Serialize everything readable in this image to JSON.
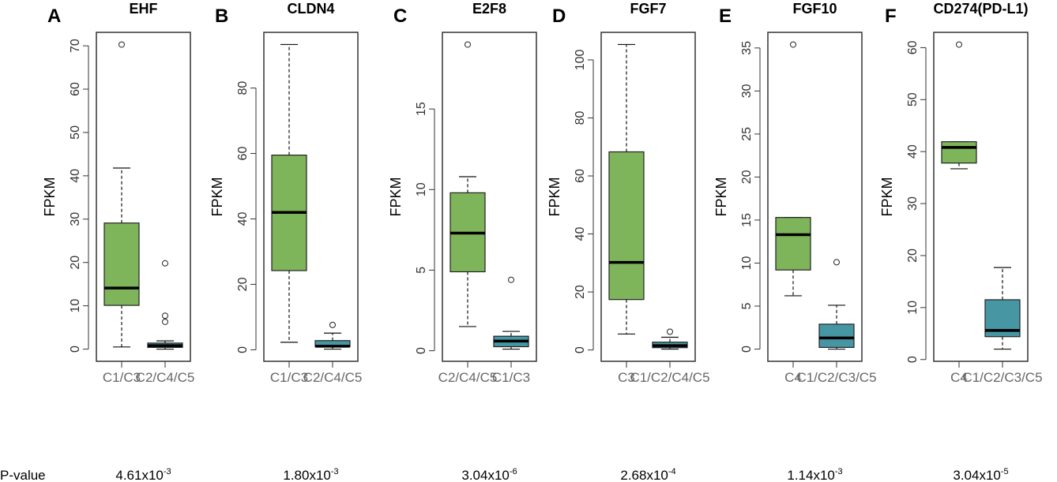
{
  "colors": {
    "green": "#7fb55a",
    "teal": "#4796a4",
    "outline": "#333333"
  },
  "row_label": "P-value",
  "chart_data": [
    {
      "type": "box",
      "letter": "A",
      "title": "EHF",
      "ylabel": "FPKM",
      "yticks": [
        0,
        10,
        20,
        30,
        40,
        50,
        60,
        70
      ],
      "p_value": {
        "base": "4.61x10",
        "exp": "-3"
      },
      "groups": [
        {
          "name": "C1/C3",
          "color": "green",
          "min": 0.5,
          "q1": 10.1,
          "median": 14.1,
          "q3": 29.1,
          "max": 41.8,
          "outliers": [
            70.3
          ]
        },
        {
          "name": "C2/C4/C5",
          "color": "teal",
          "min": 0,
          "q1": 0.4,
          "median": 0.8,
          "q3": 1.4,
          "max": 1.9,
          "outliers": [
            6.3,
            7.7,
            19.8
          ]
        }
      ]
    },
    {
      "type": "box",
      "letter": "B",
      "title": "CLDN4",
      "ylabel": "FPKM",
      "yticks": [
        0,
        20,
        40,
        60,
        80
      ],
      "p_value": {
        "base": "1.80x10",
        "exp": "-3"
      },
      "groups": [
        {
          "name": "C1/C3",
          "color": "green",
          "min": 2.3,
          "q1": 24.2,
          "median": 42,
          "q3": 59.5,
          "max": 93.3,
          "outliers": []
        },
        {
          "name": "C2/C4/C5",
          "color": "teal",
          "min": 0.2,
          "q1": 1.0,
          "median": 1.1,
          "q3": 2.8,
          "max": 5.1,
          "outliers": [
            7.6
          ]
        }
      ]
    },
    {
      "type": "box",
      "letter": "C",
      "title": "E2F8",
      "ylabel": "FPKM",
      "yticks": [
        0,
        5,
        10,
        15
      ],
      "p_value": {
        "base": "3.04x10",
        "exp": "-6"
      },
      "groups": [
        {
          "name": "C2/C4/C5",
          "color": "green",
          "min": 1.5,
          "q1": 4.9,
          "median": 7.3,
          "q3": 9.8,
          "max": 10.8,
          "outliers": [
            19.0
          ]
        },
        {
          "name": "C1/C3",
          "color": "teal",
          "min": 0.1,
          "q1": 0.25,
          "median": 0.6,
          "q3": 0.9,
          "max": 1.2,
          "outliers": [
            4.4
          ]
        }
      ]
    },
    {
      "type": "box",
      "letter": "D",
      "title": "FGF7",
      "ylabel": "FPKM",
      "yticks": [
        0,
        20,
        40,
        60,
        80,
        100
      ],
      "p_value": {
        "base": "2.68x10",
        "exp": "-4"
      },
      "groups": [
        {
          "name": "C3",
          "color": "green",
          "min": 5.5,
          "q1": 17.4,
          "median": 30.2,
          "q3": 68.3,
          "max": 105.3,
          "outliers": []
        },
        {
          "name": "C1/C2/C4/C5",
          "color": "teal",
          "min": 0.3,
          "q1": 0.8,
          "median": 1.5,
          "q3": 2.7,
          "max": 4.4,
          "outliers": [
            6.3
          ]
        }
      ]
    },
    {
      "type": "box",
      "letter": "E",
      "title": "FGF10",
      "ylabel": "FPKM",
      "yticks": [
        0,
        5,
        10,
        15,
        20,
        25,
        30,
        35
      ],
      "p_value": {
        "base": "1.14x10",
        "exp": "-3"
      },
      "groups": [
        {
          "name": "C4",
          "color": "green",
          "min": 6.2,
          "q1": 9.2,
          "median": 13.3,
          "q3": 15.3,
          "max": 15.3,
          "outliers": [
            35.4
          ]
        },
        {
          "name": "C1/C2/C3/C5",
          "color": "teal",
          "min": 0,
          "q1": 0.2,
          "median": 1.3,
          "q3": 2.9,
          "max": 5.1,
          "outliers": [
            10.1
          ]
        }
      ]
    },
    {
      "type": "box",
      "letter": "F",
      "title": "CD274(PD-L1)",
      "ylabel": "FPKM",
      "yticks": [
        0,
        10,
        20,
        30,
        40,
        50,
        60
      ],
      "p_value": {
        "base": "3.04x10",
        "exp": "-5"
      },
      "groups": [
        {
          "name": "C4",
          "color": "green",
          "min": 36.7,
          "q1": 37.8,
          "median": 40.8,
          "q3": 41.9,
          "max": 41.9,
          "outliers": [
            60.6
          ]
        },
        {
          "name": "C1/C2/C3/C5",
          "color": "teal",
          "min": 2.0,
          "q1": 4.4,
          "median": 5.6,
          "q3": 11.5,
          "max": 17.7,
          "outliers": []
        }
      ]
    }
  ]
}
